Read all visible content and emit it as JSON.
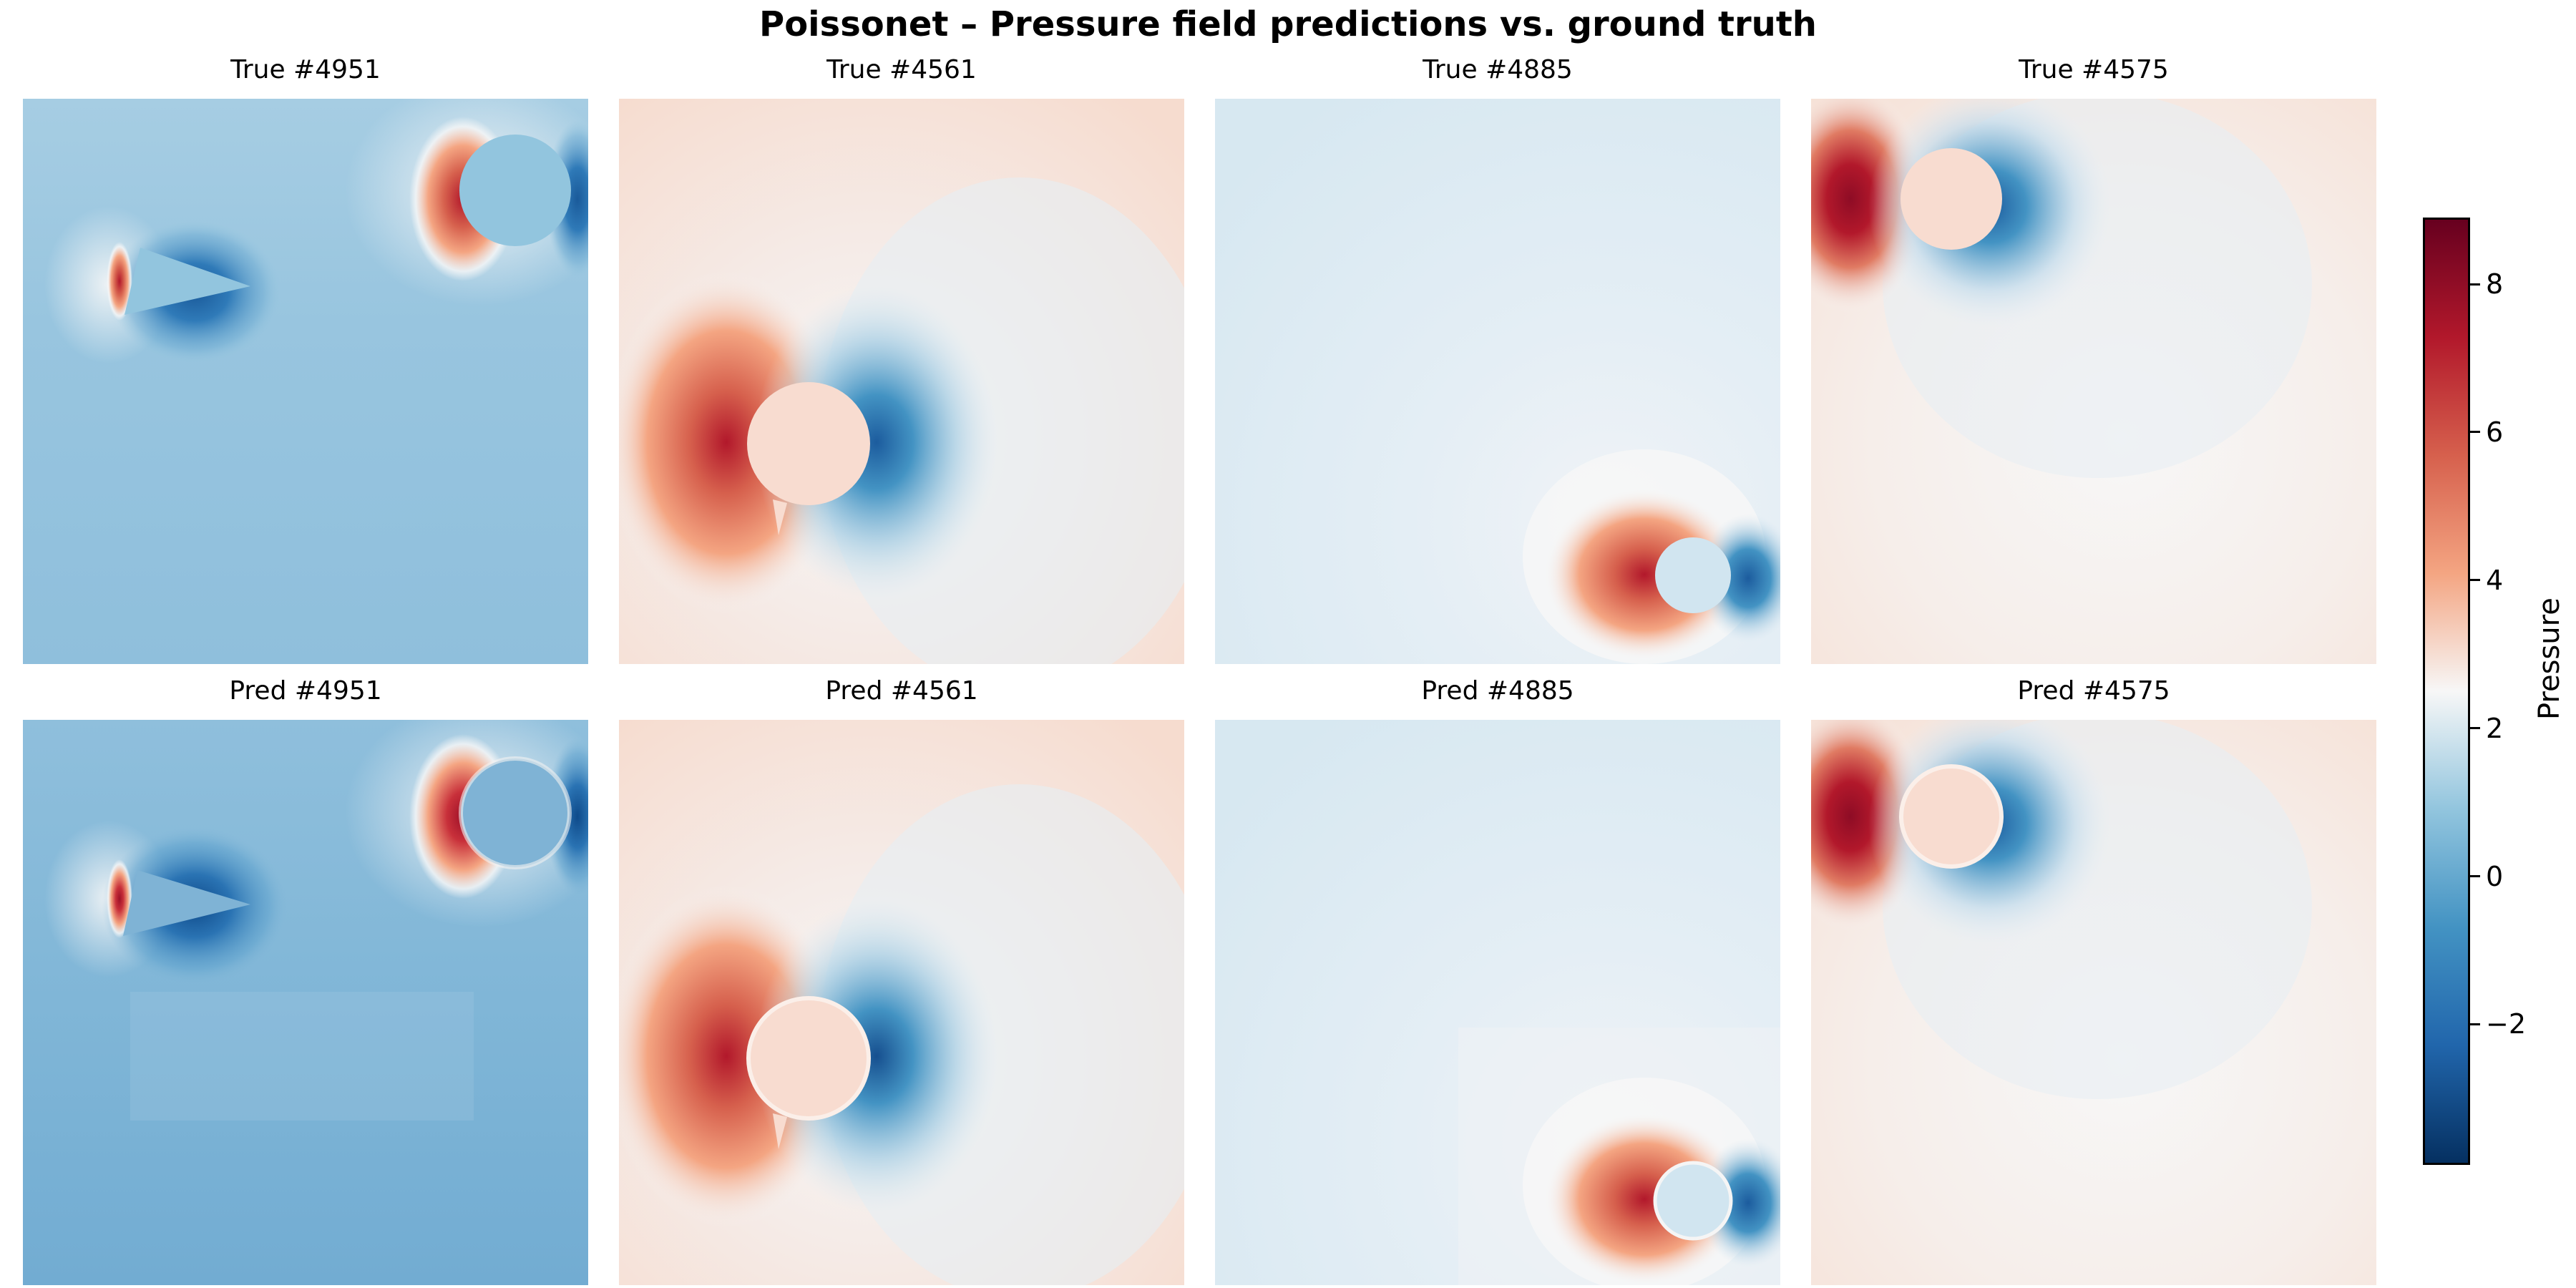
{
  "title": "Poissonet – Pressure field predictions vs. ground truth",
  "chart_data": {
    "type": "heatmap",
    "title": "Poissonet – Pressure field predictions vs. ground truth",
    "colormap": "RdBu_r",
    "colorbar": {
      "label": "Pressure",
      "range": [
        -3.9,
        8.9
      ],
      "ticks": [
        -2,
        0,
        2,
        4,
        6,
        8
      ],
      "tick_labels": [
        "−2",
        "0",
        "2",
        "4",
        "6",
        "8"
      ]
    },
    "panels": [
      {
        "label": "True #4951",
        "row": "True",
        "sample": "4951"
      },
      {
        "label": "True #4561",
        "row": "True",
        "sample": "4561"
      },
      {
        "label": "True #4885",
        "row": "True",
        "sample": "4885"
      },
      {
        "label": "True #4575",
        "row": "True",
        "sample": "4575"
      },
      {
        "label": "Pred #4951",
        "row": "Pred",
        "sample": "4951"
      },
      {
        "label": "Pred #4561",
        "row": "Pred",
        "sample": "4561"
      },
      {
        "label": "Pred #4885",
        "row": "Pred",
        "sample": "4885"
      },
      {
        "label": "Pred #4575",
        "row": "Pred",
        "sample": "4575"
      }
    ]
  }
}
